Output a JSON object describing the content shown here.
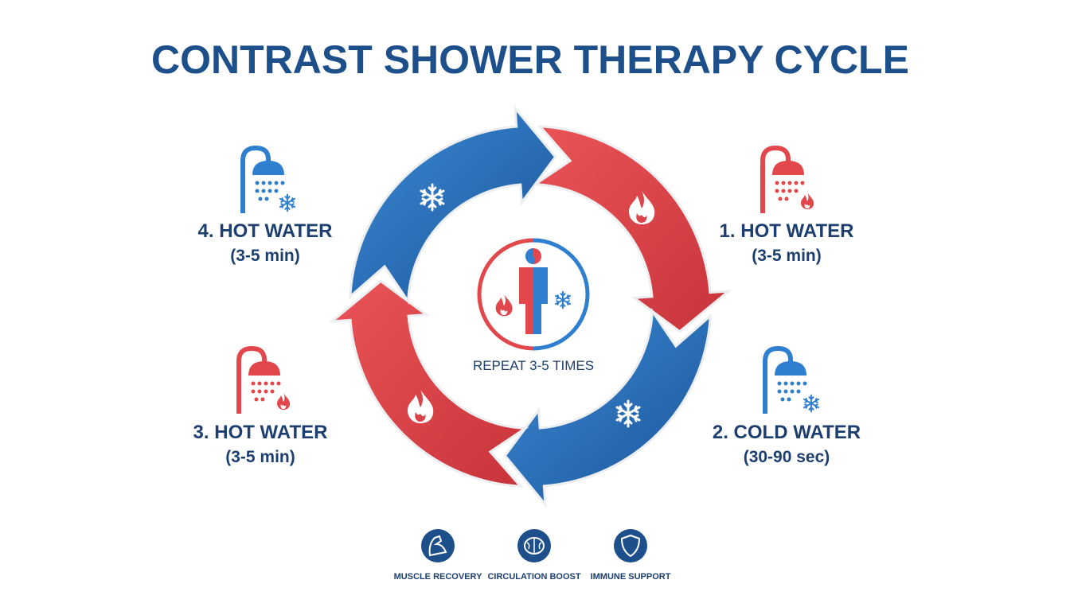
{
  "title": "CONTRAST SHOWER THERAPY CYCLE",
  "steps": [
    {
      "label": "1. HOT WATER",
      "duration": "(3-5 min)"
    },
    {
      "label": "2. COLD WATER",
      "duration": "(30-90 sec)"
    },
    {
      "label": "3. HOT WATER",
      "duration": "(3-5 min)"
    },
    {
      "label": "4. HOT WATER",
      "duration": "(3-5 min)"
    }
  ],
  "center": {
    "label": "REPEAT 3-5 TIMES"
  },
  "benefits": [
    "MUSCLE RECOVERY",
    "CIRCULATION BOOST",
    "IMMUNE SUPPORT"
  ]
}
